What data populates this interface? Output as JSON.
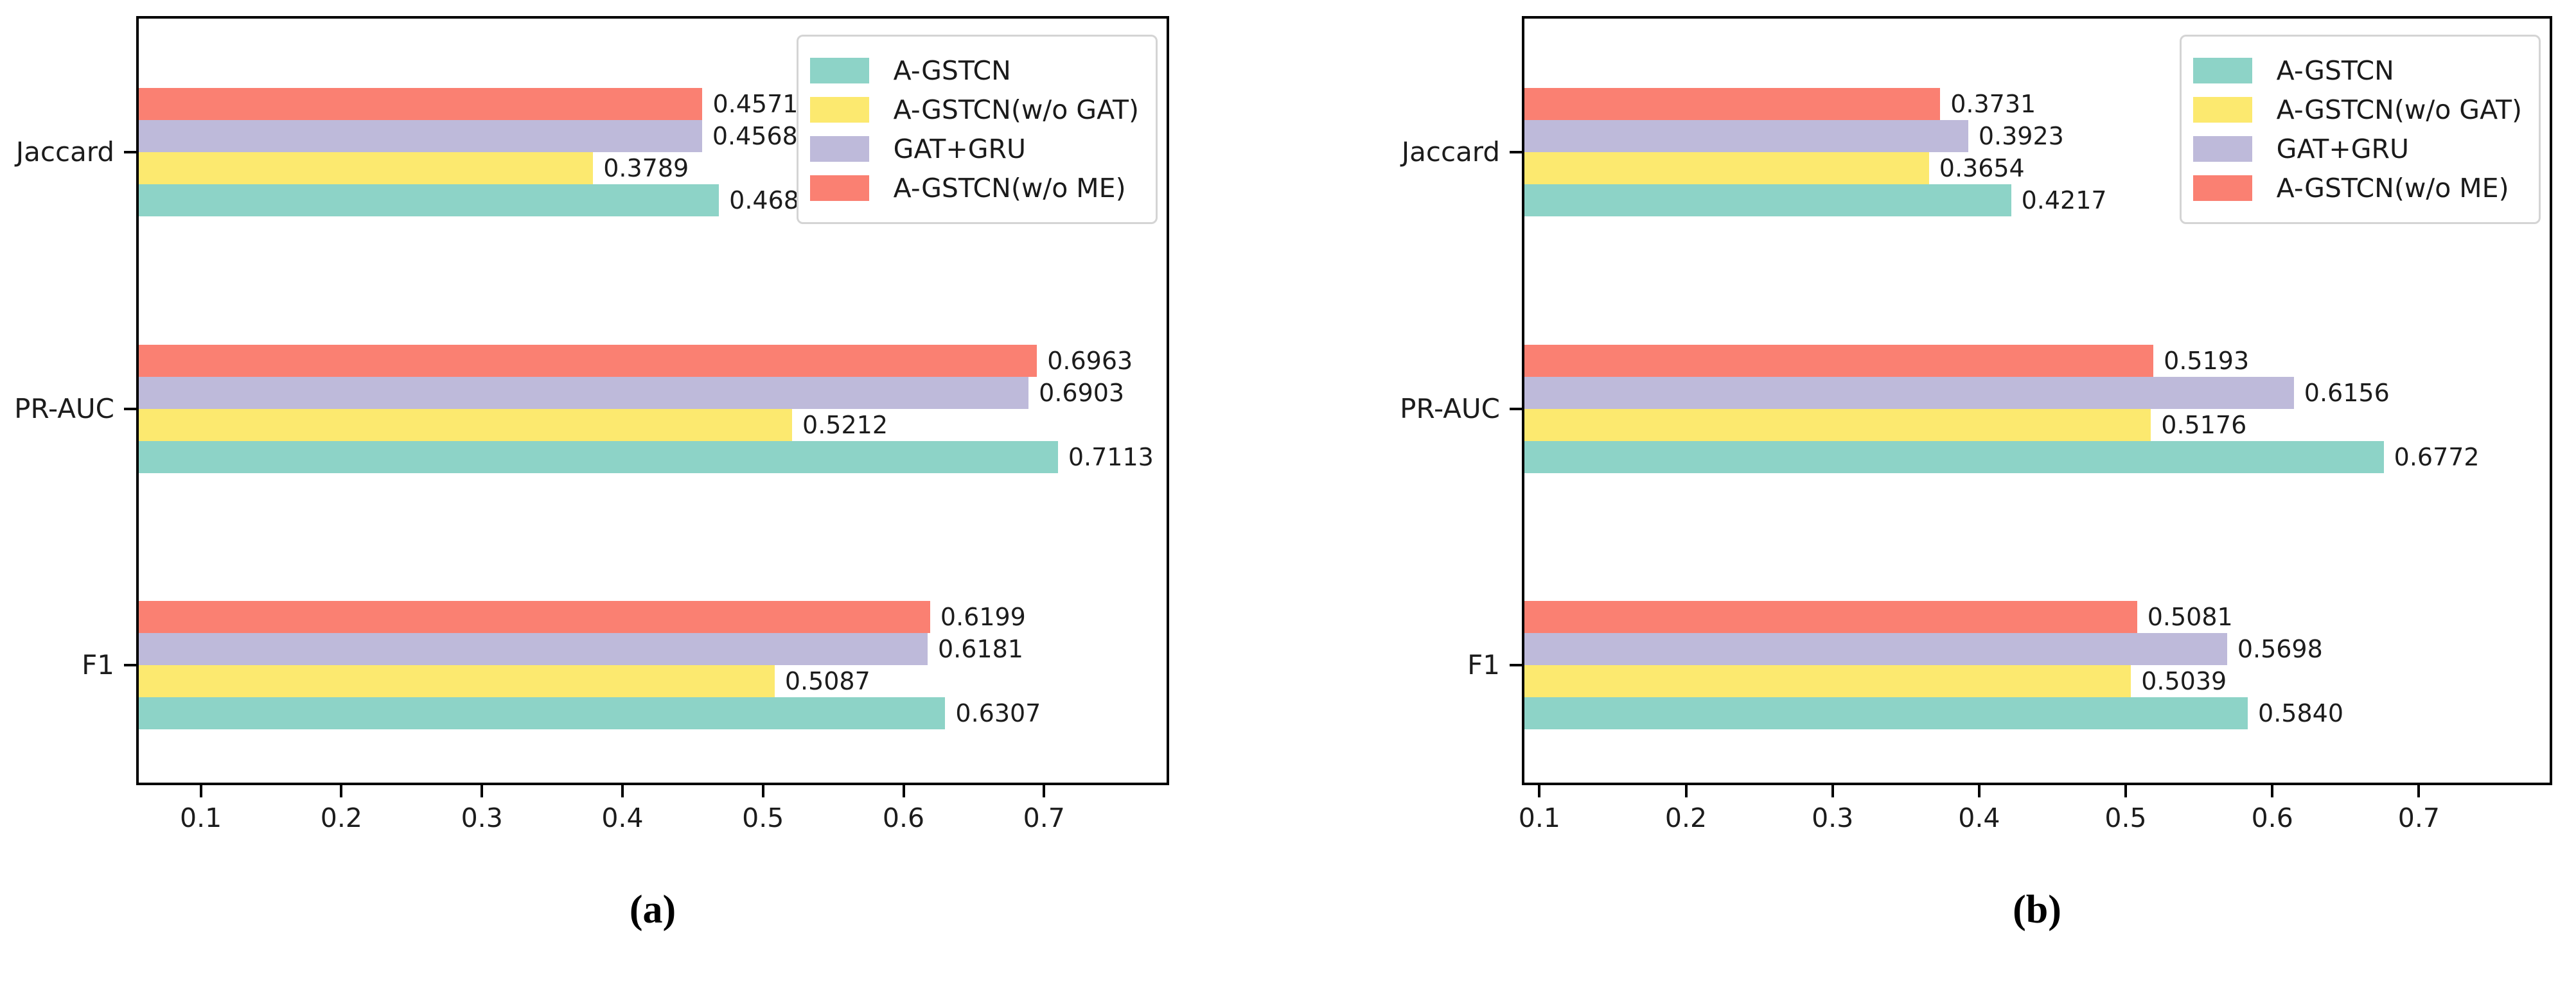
{
  "legend": {
    "entries": [
      {
        "label": "A-GSTCN",
        "color": "#8dd3c7"
      },
      {
        "label": "A-GSTCN(w/o GAT)",
        "color": "#fce96f"
      },
      {
        "label": "GAT+GRU",
        "color": "#bebada"
      },
      {
        "label": "A-GSTCN(w/o ME)",
        "color": "#fa8072"
      }
    ],
    "position": "upper right"
  },
  "chart_data": [
    {
      "id": "a",
      "type": "bar",
      "orientation": "horizontal",
      "caption": "(a)",
      "title": "",
      "xlabel": "",
      "ylabel": "",
      "grid": false,
      "categories": [
        "Jaccard",
        "PR-AUC",
        "F1"
      ],
      "xlim": [
        0.054,
        0.789
      ],
      "x_ticks": [
        {
          "label": "0.1",
          "value": 0.1
        },
        {
          "label": "0.2",
          "value": 0.2
        },
        {
          "label": "0.3",
          "value": 0.3
        },
        {
          "label": "0.4",
          "value": 0.4
        },
        {
          "label": "0.5",
          "value": 0.5
        },
        {
          "label": "0.6",
          "value": 0.6
        },
        {
          "label": "0.7",
          "value": 0.7
        }
      ],
      "row_order_top_to_bottom": [
        "A-GSTCN(w/o ME)",
        "GAT+GRU",
        "A-GSTCN(w/o GAT)",
        "A-GSTCN"
      ],
      "series": [
        {
          "name": "A-GSTCN",
          "color": "#8dd3c7",
          "values": [
            0.4689,
            0.7113,
            0.6307
          ],
          "labels": [
            "0.4689",
            "0.7113",
            "0.6307"
          ]
        },
        {
          "name": "A-GSTCN(w/o GAT)",
          "color": "#fce96f",
          "values": [
            0.3789,
            0.5212,
            0.5087
          ],
          "labels": [
            "0.3789",
            "0.5212",
            "0.5087"
          ]
        },
        {
          "name": "GAT+GRU",
          "color": "#bebada",
          "values": [
            0.4568,
            0.6903,
            0.6181
          ],
          "labels": [
            "0.4568",
            "0.6903",
            "0.6181"
          ]
        },
        {
          "name": "A-GSTCN(w/o ME)",
          "color": "#fa8072",
          "values": [
            0.4571,
            0.6963,
            0.6199
          ],
          "labels": [
            "0.4571",
            "0.6963",
            "0.6199"
          ]
        }
      ]
    },
    {
      "id": "b",
      "type": "bar",
      "orientation": "horizontal",
      "caption": "(b)",
      "title": "",
      "xlabel": "",
      "ylabel": "",
      "grid": false,
      "categories": [
        "Jaccard",
        "PR-AUC",
        "F1"
      ],
      "xlim": [
        0.088,
        0.791
      ],
      "x_ticks": [
        {
          "label": "0.1",
          "value": 0.1
        },
        {
          "label": "0.2",
          "value": 0.2
        },
        {
          "label": "0.3",
          "value": 0.3
        },
        {
          "label": "0.4",
          "value": 0.4
        },
        {
          "label": "0.5",
          "value": 0.5
        },
        {
          "label": "0.6",
          "value": 0.6
        },
        {
          "label": "0.7",
          "value": 0.7
        }
      ],
      "row_order_top_to_bottom": [
        "A-GSTCN(w/o ME)",
        "GAT+GRU",
        "A-GSTCN(w/o GAT)",
        "A-GSTCN"
      ],
      "series": [
        {
          "name": "A-GSTCN",
          "color": "#8dd3c7",
          "values": [
            0.4217,
            0.6772,
            0.584
          ],
          "labels": [
            "0.4217",
            "0.6772",
            "0.5840"
          ]
        },
        {
          "name": "A-GSTCN(w/o GAT)",
          "color": "#fce96f",
          "values": [
            0.3654,
            0.5176,
            0.5039
          ],
          "labels": [
            "0.3654",
            "0.5176",
            "0.5039"
          ]
        },
        {
          "name": "GAT+GRU",
          "color": "#bebada",
          "values": [
            0.3923,
            0.6156,
            0.5698
          ],
          "labels": [
            "0.3923",
            "0.6156",
            "0.5698"
          ]
        },
        {
          "name": "A-GSTCN(w/o ME)",
          "color": "#fa8072",
          "values": [
            0.3731,
            0.5193,
            0.5081
          ],
          "labels": [
            "0.3731",
            "0.5193",
            "0.5081"
          ]
        }
      ]
    }
  ]
}
